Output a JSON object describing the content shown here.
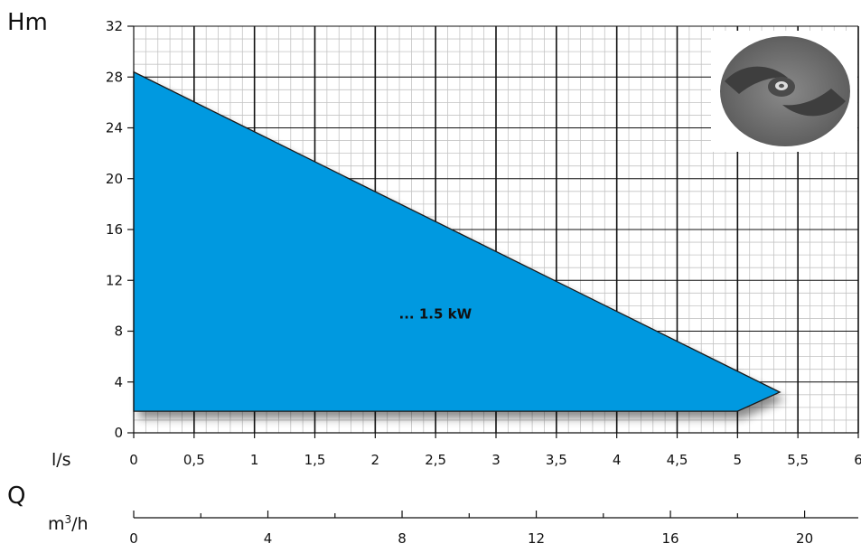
{
  "chart_data": {
    "type": "area",
    "y_axis_title": "Hm",
    "x_axis_title": "l/s",
    "q_label": "Q",
    "x2_axis_title_base": "m",
    "x2_axis_title_sup": "3",
    "x2_axis_title_tail": "/h",
    "area_label": "... 1.5 kW",
    "area_color": "#0099e0",
    "ylim": [
      0,
      32
    ],
    "xlim": [
      0,
      6
    ],
    "y_ticks": [
      0,
      4,
      8,
      12,
      16,
      20,
      24,
      28,
      32
    ],
    "x_ticks": [
      0,
      0.5,
      1,
      1.5,
      2,
      2.5,
      3,
      3.5,
      4,
      4.5,
      5,
      5.5,
      6
    ],
    "x_tick_labels": [
      "0",
      "0,5",
      "1",
      "1,5",
      "2",
      "2,5",
      "3",
      "3,5",
      "4",
      "4,5",
      "5",
      "5,5",
      "6"
    ],
    "x2_ticks": [
      0,
      4,
      8,
      12,
      16,
      20
    ],
    "x2_tick_labels": [
      "0",
      "4",
      "8",
      "12",
      "16",
      "20"
    ],
    "polygon": [
      {
        "x": 0,
        "y": 28.4
      },
      {
        "x": 5.35,
        "y": 3.2
      },
      {
        "x": 5.0,
        "y": 1.7
      },
      {
        "x": 0,
        "y": 1.7
      }
    ],
    "grid": true,
    "inset_image": "pump-impeller-photo"
  }
}
